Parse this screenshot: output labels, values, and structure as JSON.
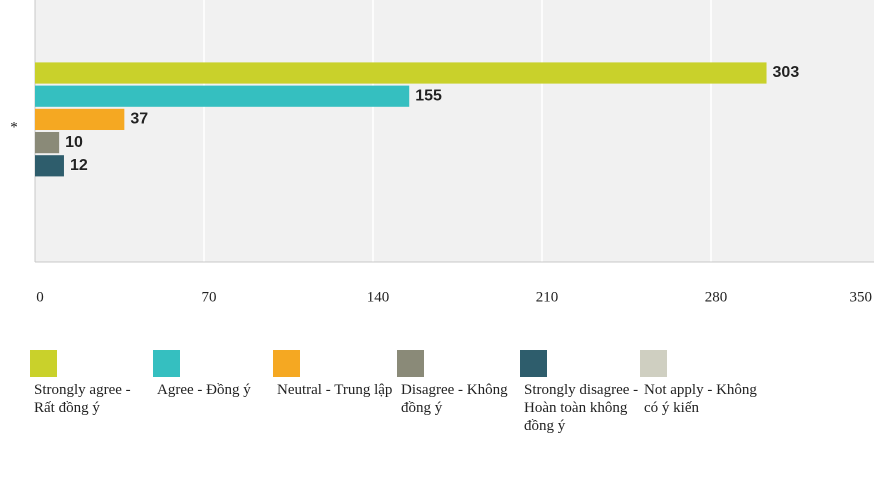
{
  "chart_data": {
    "type": "hbar",
    "categories": [
      "*"
    ],
    "series": [
      {
        "name": "Strongly agree - Rất đồng ý",
        "color": "#c9d12b",
        "values": [
          303
        ]
      },
      {
        "name": "Agree - Đồng ý",
        "color": "#35bfc0",
        "values": [
          155
        ]
      },
      {
        "name": "Neutral - Trung lập",
        "color": "#f5a822",
        "values": [
          37
        ]
      },
      {
        "name": "Disagree - Không đồng ý",
        "color": "#8a8a78",
        "values": [
          10
        ]
      },
      {
        "name": "Strongly disagree - Hoàn toàn không đồng ý",
        "color": "#2e5d6c",
        "values": [
          12
        ]
      },
      {
        "name": "Not apply - Không có ý kiến",
        "color": "#cfcfc1",
        "values": [
          null
        ]
      }
    ],
    "xlim": [
      0,
      350
    ],
    "xticks": [
      0,
      70,
      140,
      210,
      280,
      350
    ],
    "grid": true,
    "legend": "bottom"
  }
}
